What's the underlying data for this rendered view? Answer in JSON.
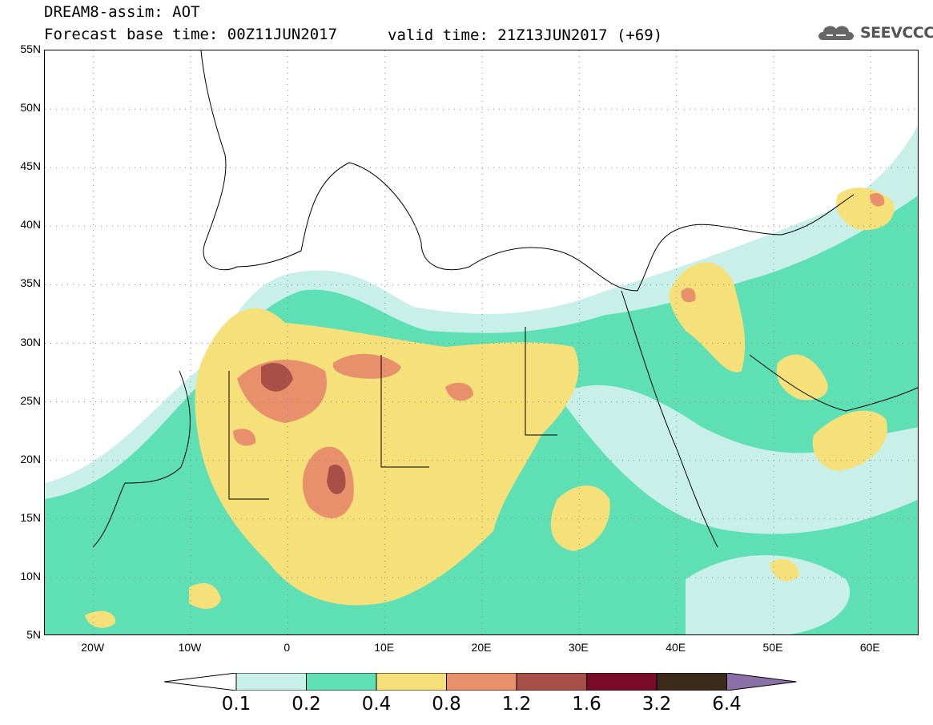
{
  "header": {
    "title": "DREAM8-assim: AOT",
    "base_time": "Forecast base time: 00Z11JUN2017",
    "valid_time": "valid time: 21Z13JUN2017 (+69)"
  },
  "logo": {
    "text": "SEEVCCC",
    "icon": "cloud-icon"
  },
  "map": {
    "y_axis": [
      "55N",
      "50N",
      "45N",
      "40N",
      "35N",
      "30N",
      "25N",
      "20N",
      "15N",
      "10N",
      "5N"
    ],
    "x_axis": [
      "20W",
      "10W",
      "0",
      "10E",
      "20E",
      "30E",
      "40E",
      "50E",
      "60E"
    ],
    "lon_range": [
      -25,
      65
    ],
    "lat_range": [
      5,
      55
    ],
    "grid": true
  },
  "legend": {
    "labels": [
      "0.1",
      "0.2",
      "0.4",
      "0.8",
      "1.2",
      "1.6",
      "3.2",
      "6.4"
    ],
    "colors": [
      "#c8f0e8",
      "#5ee0b4",
      "#f5e07a",
      "#e8906c",
      "#a85048",
      "#7a0a2a",
      "#3c2a1a",
      "#8c70a8"
    ],
    "under_color": "#ffffff"
  }
}
